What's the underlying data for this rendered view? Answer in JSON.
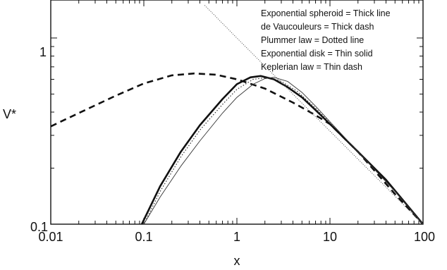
{
  "chart_data": {
    "type": "line",
    "xlabel": "x",
    "ylabel": "V*",
    "xscale": "log",
    "yscale": "log",
    "xlim": [
      0.01,
      100
    ],
    "ylim": [
      0.1,
      1.6
    ],
    "x_ticks": [
      {
        "value": 0.01,
        "label": "0.01"
      },
      {
        "value": 0.1,
        "label": "0.1"
      },
      {
        "value": 1,
        "label": "1"
      },
      {
        "value": 10,
        "label": "10"
      },
      {
        "value": 100,
        "label": "100"
      }
    ],
    "y_ticks": [
      {
        "value": 0.1,
        "label": "0.1"
      },
      {
        "value": 1,
        "label": "1"
      }
    ],
    "legend_position": "top-right",
    "legend": [
      "Exponential spheroid = Thick line",
      "de Vaucouleurs = Thick dash",
      "Plummer law  = Dotted line",
      "Exponential disk = Thin solid",
      "Keplerian law  = Thin dash"
    ],
    "series": [
      {
        "style": "thick-solid",
        "x": [
          0.095,
          0.15,
          0.25,
          0.4,
          0.7,
          1.0,
          1.4,
          1.8,
          2.5,
          3.5,
          5,
          7,
          10,
          20,
          40,
          100
        ],
        "y": [
          0.1,
          0.16,
          0.245,
          0.34,
          0.47,
          0.565,
          0.615,
          0.625,
          0.6,
          0.545,
          0.48,
          0.41,
          0.345,
          0.245,
          0.173,
          0.1
        ]
      },
      {
        "style": "thick-dash",
        "x": [
          0.01,
          0.02,
          0.05,
          0.1,
          0.2,
          0.35,
          0.6,
          1.0,
          2.0,
          4.0,
          7.0,
          10,
          20,
          50,
          100
        ],
        "y": [
          0.335,
          0.395,
          0.49,
          0.57,
          0.63,
          0.645,
          0.635,
          0.6,
          0.535,
          0.45,
          0.385,
          0.345,
          0.245,
          0.145,
          0.1
        ]
      },
      {
        "style": "dotted",
        "x": [
          0.1,
          0.15,
          0.25,
          0.4,
          0.7,
          1.0,
          1.5,
          2.2,
          3.0,
          4.5,
          7,
          10,
          20,
          50,
          100
        ],
        "y": [
          0.1,
          0.15,
          0.23,
          0.32,
          0.44,
          0.53,
          0.6,
          0.615,
          0.585,
          0.515,
          0.42,
          0.35,
          0.245,
          0.15,
          0.1
        ]
      },
      {
        "style": "thin-solid",
        "x": [
          0.1,
          0.15,
          0.25,
          0.4,
          0.7,
          1.0,
          1.5,
          2.0,
          2.5,
          3.5,
          5,
          7,
          10,
          20,
          50,
          100
        ],
        "y": [
          0.1,
          0.14,
          0.205,
          0.28,
          0.395,
          0.48,
          0.565,
          0.605,
          0.615,
          0.585,
          0.51,
          0.43,
          0.355,
          0.245,
          0.15,
          0.1
        ]
      },
      {
        "style": "thin-dash",
        "x": [
          0.45,
          1,
          3,
          10,
          100
        ],
        "y": [
          1.5,
          1.0,
          0.577,
          0.316,
          0.1
        ]
      }
    ]
  }
}
